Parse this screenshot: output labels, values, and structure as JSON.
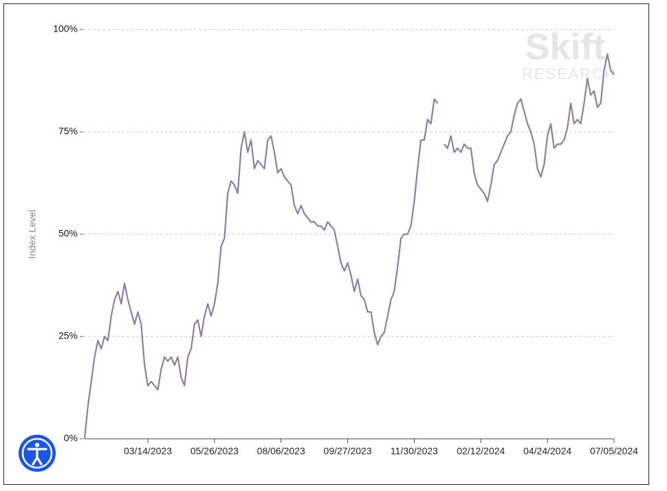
{
  "chart_data": {
    "type": "line",
    "y_label": "Index Level",
    "watermark": [
      "Skift",
      "RESEARCH"
    ],
    "color": "#8f7da3",
    "grid": true,
    "ylim": [
      0,
      100
    ],
    "yticks": [
      {
        "value": 0,
        "label": "0%"
      },
      {
        "value": 25,
        "label": "25%"
      },
      {
        "value": 50,
        "label": "50%"
      },
      {
        "value": 75,
        "label": "75%"
      },
      {
        "value": 100,
        "label": "100%"
      }
    ],
    "categories": [
      null,
      null,
      null,
      null,
      null,
      null,
      null,
      null,
      null,
      null,
      null,
      null,
      null,
      null,
      null,
      null,
      null,
      null,
      null,
      "03/14/2023",
      null,
      null,
      null,
      null,
      null,
      null,
      null,
      null,
      null,
      null,
      null,
      null,
      null,
      null,
      null,
      null,
      null,
      null,
      null,
      "05/26/2023",
      null,
      null,
      null,
      null,
      null,
      null,
      null,
      null,
      null,
      null,
      null,
      null,
      null,
      null,
      null,
      null,
      null,
      null,
      null,
      "08/06/2023",
      null,
      null,
      null,
      null,
      null,
      null,
      null,
      null,
      null,
      null,
      null,
      null,
      null,
      null,
      null,
      null,
      null,
      null,
      null,
      "09/27/2023",
      null,
      null,
      null,
      null,
      null,
      null,
      null,
      null,
      null,
      null,
      null,
      null,
      null,
      null,
      null,
      null,
      null,
      null,
      null,
      "11/30/2023",
      null,
      null,
      null,
      null,
      null,
      null,
      null,
      null,
      null,
      null,
      null,
      null,
      null,
      null,
      null,
      null,
      null,
      null,
      null,
      "02/12/2024",
      null,
      null,
      null,
      null,
      null,
      null,
      null,
      null,
      null,
      null,
      null,
      null,
      null,
      null,
      null,
      null,
      null,
      null,
      null,
      "04/24/2024",
      null,
      null,
      null,
      null,
      null,
      null,
      null,
      null,
      null,
      null,
      null,
      null,
      null,
      null,
      null,
      null,
      null,
      null,
      null,
      "07/05/2024"
    ],
    "values": [
      0,
      8,
      14,
      20,
      24,
      22,
      25,
      24,
      30,
      34,
      36,
      33,
      38,
      34,
      31,
      28,
      31,
      28,
      18,
      13,
      14,
      13,
      12,
      17,
      20,
      19,
      20,
      18,
      20,
      15,
      13,
      20,
      22,
      28,
      29,
      25,
      30,
      33,
      30,
      33,
      38,
      47,
      49,
      60,
      63,
      62,
      60,
      71,
      75,
      70,
      73,
      66,
      68,
      67,
      66,
      73,
      74,
      70,
      65,
      66,
      64,
      63,
      62,
      57,
      55,
      57,
      55,
      54,
      53,
      53,
      52,
      52,
      51,
      53,
      52,
      51,
      47,
      43,
      41,
      43,
      40,
      36,
      39,
      35,
      34,
      31,
      31,
      26,
      23,
      25,
      26,
      30,
      34,
      36,
      42,
      49,
      50,
      50,
      52,
      58,
      66,
      73,
      73,
      78,
      77,
      83,
      82,
      null,
      72,
      71,
      74,
      70,
      71,
      70,
      72,
      71,
      71,
      65,
      62,
      61,
      60,
      58,
      62,
      67,
      68,
      70,
      72,
      74,
      75,
      79,
      82,
      83,
      80,
      77,
      75,
      72,
      66,
      64,
      67,
      74,
      77,
      71,
      72,
      72,
      73,
      76,
      82,
      77,
      78,
      77,
      82,
      88,
      84,
      85,
      81,
      82,
      90,
      94,
      90,
      89
    ]
  }
}
